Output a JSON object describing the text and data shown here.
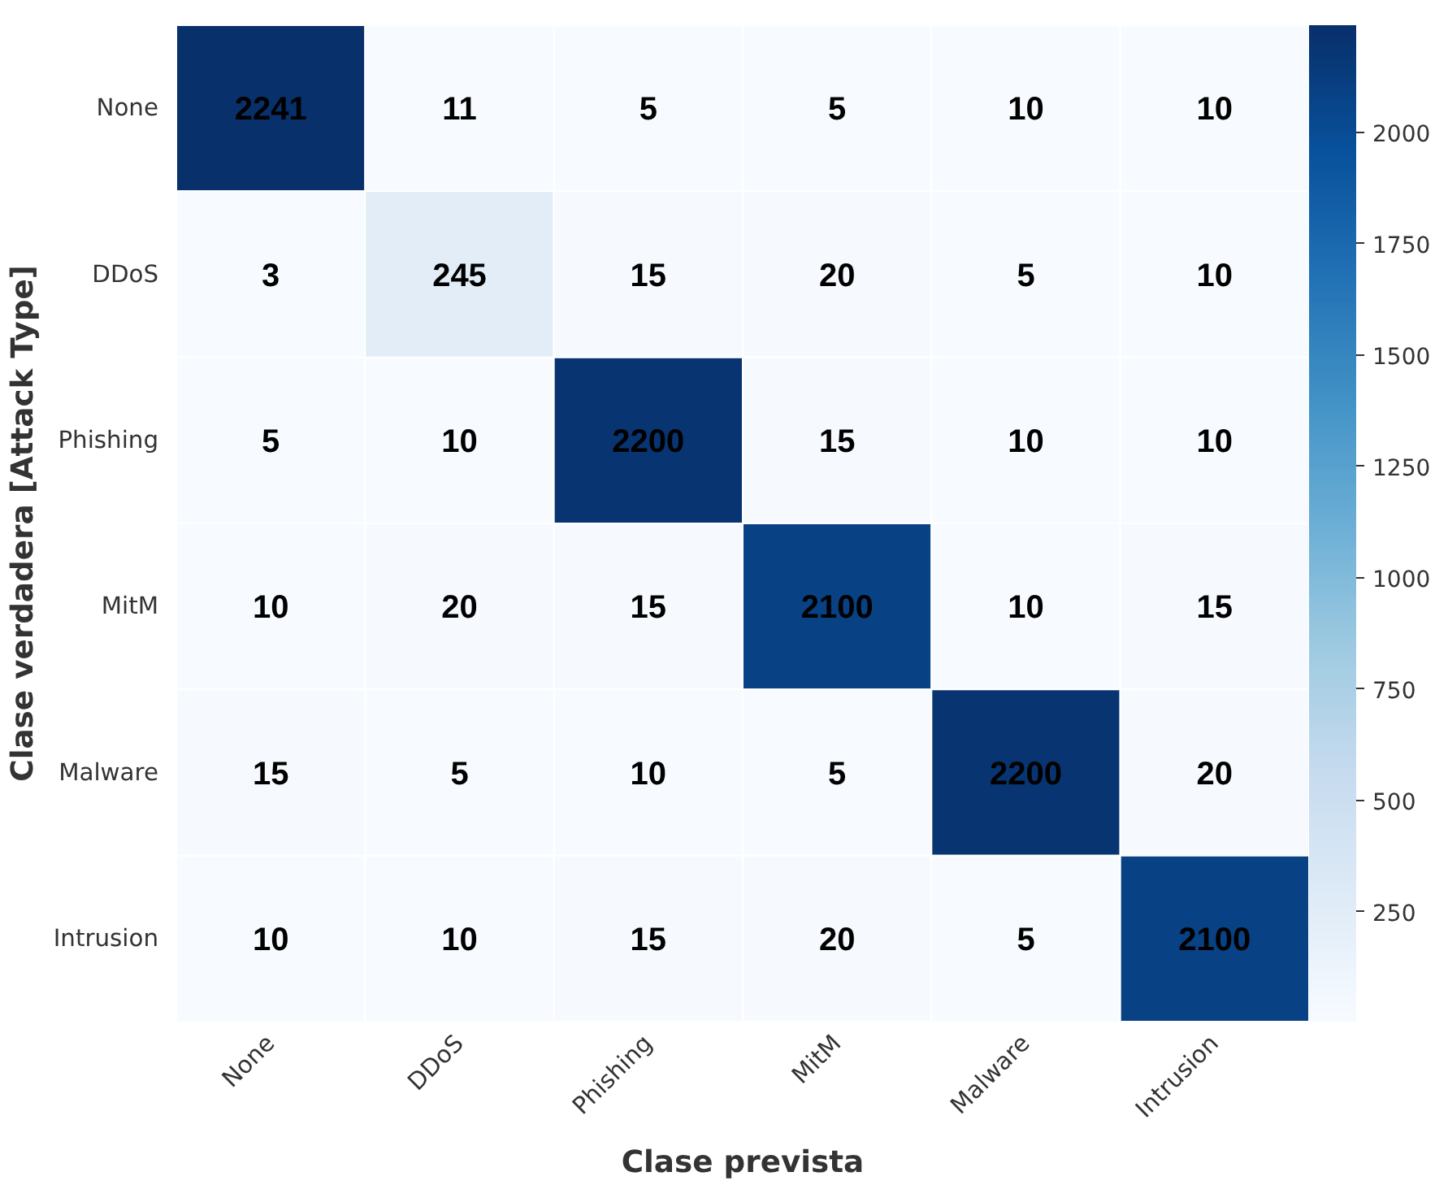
{
  "chart_data": {
    "type": "heatmap",
    "xlabel": "Clase prevista",
    "ylabel": "Clase verdadera [Attack Type]",
    "categories": [
      "None",
      "DDoS",
      "Phishing",
      "MitM",
      "Malware",
      "Intrusion"
    ],
    "y_categories": [
      "None",
      "DDoS",
      "Phishing",
      "MitM",
      "Malware",
      "Intrusion"
    ],
    "cells": [
      [
        2241,
        11,
        5,
        5,
        10,
        10
      ],
      [
        3,
        245,
        15,
        20,
        5,
        10
      ],
      [
        5,
        10,
        2200,
        15,
        10,
        10
      ],
      [
        10,
        20,
        15,
        2100,
        10,
        15
      ],
      [
        15,
        5,
        10,
        5,
        2200,
        20
      ],
      [
        10,
        10,
        15,
        20,
        5,
        2100
      ]
    ],
    "clim": [
      3,
      2241
    ],
    "cticks": [
      250,
      500,
      750,
      1000,
      1250,
      1500,
      1750,
      2000
    ],
    "data_labels": true
  }
}
